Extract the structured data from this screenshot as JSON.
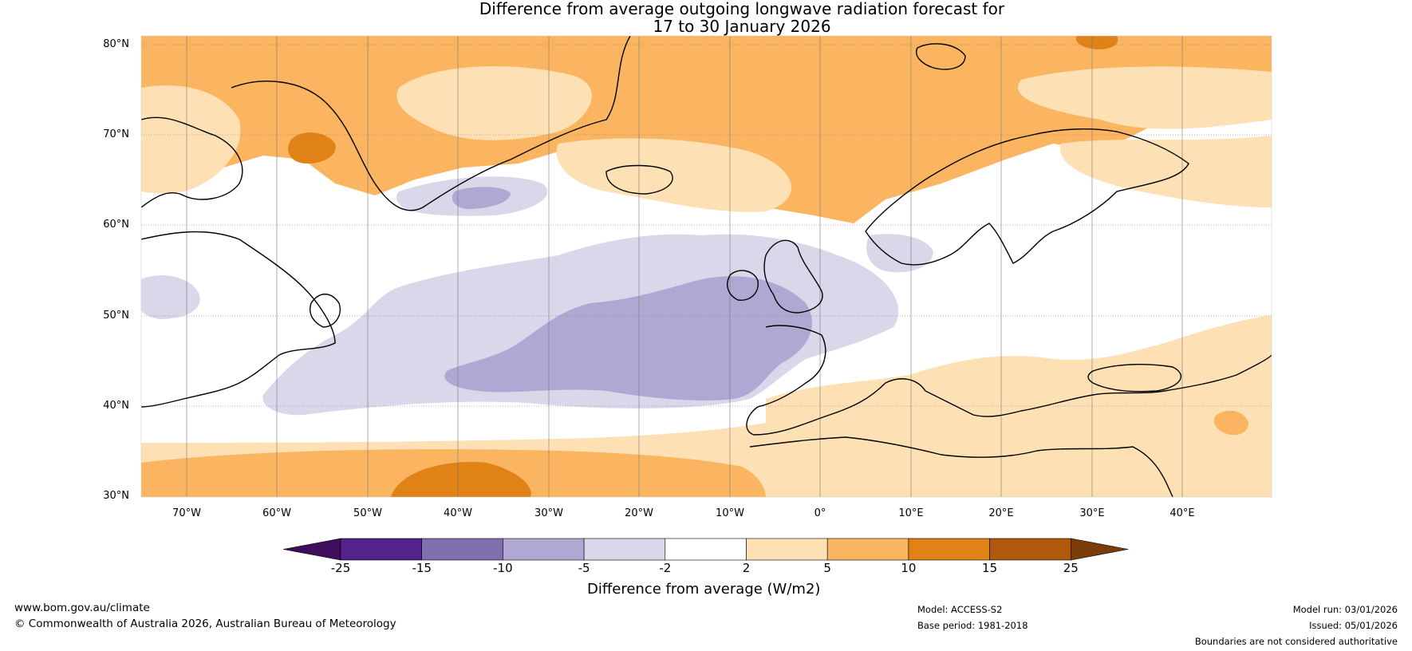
{
  "title": {
    "line1": "Difference from average outgoing longwave radiation forecast for",
    "line2": "17 to 30 January 2026"
  },
  "map": {
    "region": "North Atlantic and Europe",
    "lat_labels": [
      "80°N",
      "70°N",
      "60°N",
      "50°N",
      "40°N",
      "30°N"
    ],
    "lon_labels": [
      "70°W",
      "60°W",
      "50°W",
      "40°W",
      "30°W",
      "20°W",
      "10°W",
      "0°",
      "10°E",
      "20°E",
      "30°E",
      "40°E"
    ],
    "lat_range": [
      30,
      80
    ],
    "lon_range": [
      -75,
      50
    ]
  },
  "colorbar": {
    "label": "Difference from average (W/m2)",
    "ticks": [
      "-25",
      "-15",
      "-10",
      "-5",
      "-2",
      "2",
      "5",
      "10",
      "15",
      "25"
    ],
    "colors": [
      "#3f0d5c",
      "#53228a",
      "#8070b0",
      "#b0a8d2",
      "#d8d8ea",
      "#ffffff",
      "#fde0b4",
      "#fbb460",
      "#e08216",
      "#b0580c",
      "#7a3c08"
    ]
  },
  "footer": {
    "website": "www.bom.gov.au/climate",
    "copyright": "© Commonwealth of Australia 2026, Australian Bureau of Meteorology",
    "model": "Model: ACCESS-S2",
    "base_period": "Base period: 1981-2018",
    "model_run": "Model run: 03/01/2026",
    "issued": "Issued: 05/01/2026",
    "disclaimer": "Boundaries are not considered authoritative"
  }
}
